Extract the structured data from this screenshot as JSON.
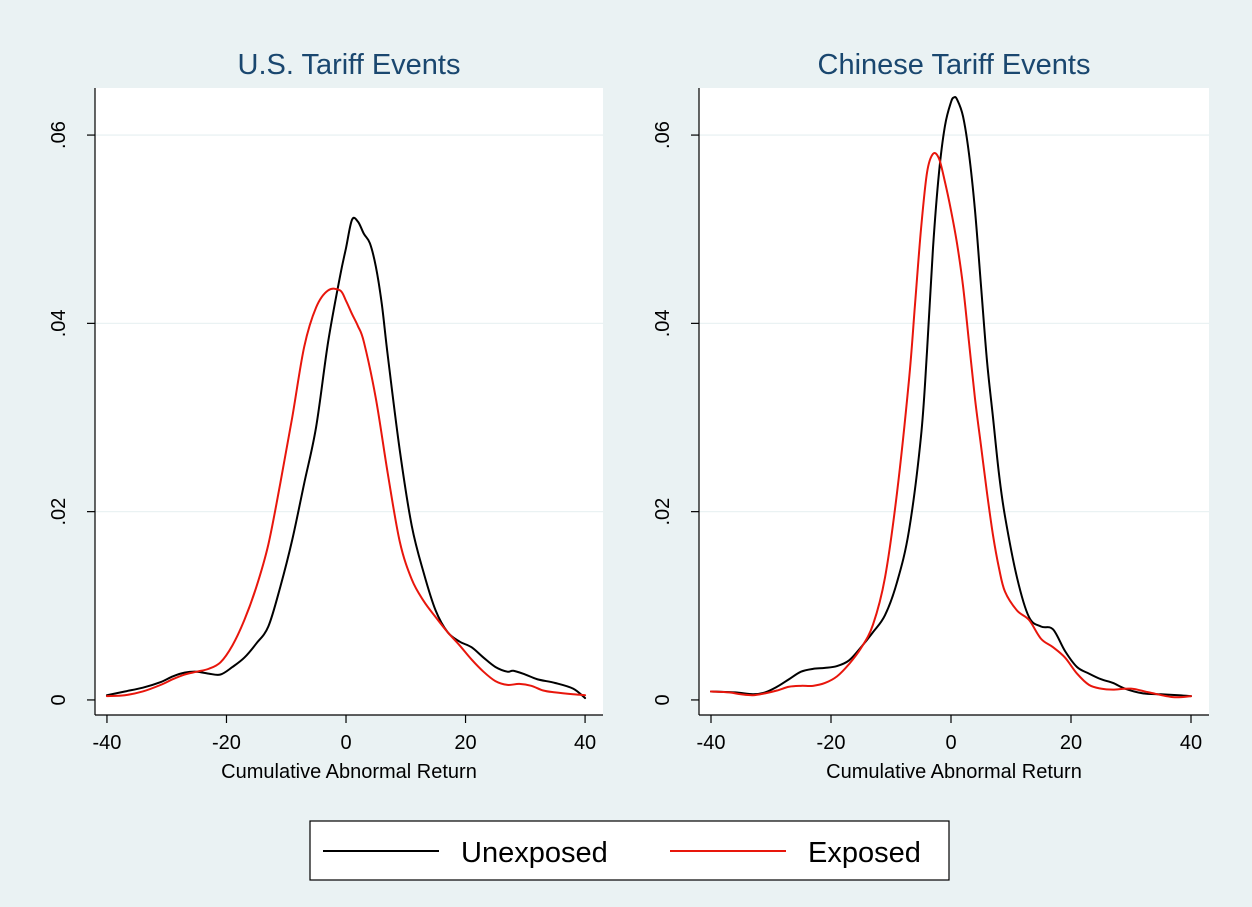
{
  "colors": {
    "background": "#eaf2f3",
    "plot_background": "#ffffff",
    "title": "#1a476f",
    "gridline": "#eaf2f3",
    "unexposed": "#000000",
    "exposed": "#e8160c"
  },
  "legend": {
    "position": "bottom-center",
    "items": [
      {
        "label": "Unexposed",
        "color": "#000000"
      },
      {
        "label": "Exposed",
        "color": "#e8160c"
      }
    ]
  },
  "chart_data": [
    {
      "type": "line",
      "title": "U.S. Tariff Events",
      "xlabel": "Cumulative Abnormal Return",
      "ylabel": "",
      "xlim": [
        -42,
        43
      ],
      "ylim": [
        -0.0016,
        0.065
      ],
      "xticks": [
        -40,
        -20,
        0,
        20,
        40
      ],
      "xtick_labels": [
        "-40",
        "-20",
        "0",
        "20",
        "40"
      ],
      "yticks": [
        0,
        0.02,
        0.04,
        0.06
      ],
      "ytick_labels": [
        "0",
        ".02",
        ".04",
        ".06"
      ],
      "grid": true,
      "series": [
        {
          "name": "Unexposed",
          "color": "#000000",
          "x": [
            -40,
            -37,
            -34,
            -31,
            -29,
            -27,
            -25,
            -23,
            -21,
            -19,
            -17,
            -15,
            -13,
            -11,
            -9,
            -7,
            -5,
            -3,
            -1,
            0,
            1,
            2,
            3,
            4,
            5,
            6,
            7,
            9,
            11,
            13,
            15,
            17,
            19,
            21,
            23,
            25,
            27,
            28,
            30,
            32,
            35,
            38,
            40
          ],
          "y": [
            0.0005,
            0.0009,
            0.0013,
            0.0019,
            0.0025,
            0.0029,
            0.003,
            0.0028,
            0.0027,
            0.0035,
            0.0045,
            0.006,
            0.0078,
            0.012,
            0.017,
            0.023,
            0.029,
            0.038,
            0.045,
            0.048,
            0.051,
            0.0508,
            0.0495,
            0.0485,
            0.046,
            0.042,
            0.0365,
            0.0265,
            0.0185,
            0.0135,
            0.0095,
            0.0072,
            0.0062,
            0.0056,
            0.0045,
            0.0035,
            0.003,
            0.0031,
            0.0027,
            0.0022,
            0.0018,
            0.0012,
            0.0002
          ]
        },
        {
          "name": "Exposed",
          "color": "#e8160c",
          "x": [
            -40,
            -37,
            -34,
            -31,
            -29,
            -27,
            -25,
            -23,
            -21,
            -19,
            -17,
            -15,
            -13,
            -11,
            -9,
            -7,
            -5,
            -3,
            -1,
            0,
            1,
            2,
            3,
            5,
            7,
            9,
            11,
            13,
            15,
            17,
            19,
            21,
            23,
            25,
            27,
            29,
            31,
            33,
            35,
            38,
            40
          ],
          "y": [
            0.0004,
            0.0005,
            0.0009,
            0.0016,
            0.0022,
            0.0027,
            0.003,
            0.0033,
            0.004,
            0.0058,
            0.0085,
            0.012,
            0.0165,
            0.023,
            0.03,
            0.0375,
            0.0417,
            0.0435,
            0.0435,
            0.0424,
            0.041,
            0.0397,
            0.038,
            0.032,
            0.024,
            0.0168,
            0.0128,
            0.0105,
            0.0088,
            0.0072,
            0.0058,
            0.0043,
            0.003,
            0.002,
            0.0016,
            0.0017,
            0.0015,
            0.001,
            0.0008,
            0.0006,
            0.0005
          ]
        }
      ]
    },
    {
      "type": "line",
      "title": "Chinese Tariff Events",
      "xlabel": "Cumulative Abnormal Return",
      "ylabel": "",
      "xlim": [
        -42,
        43
      ],
      "ylim": [
        -0.0016,
        0.065
      ],
      "xticks": [
        -40,
        -20,
        0,
        20,
        40
      ],
      "xtick_labels": [
        "-40",
        "-20",
        "0",
        "20",
        "40"
      ],
      "yticks": [
        0,
        0.02,
        0.04,
        0.06
      ],
      "ytick_labels": [
        "0",
        ".02",
        ".04",
        ".06"
      ],
      "grid": true,
      "series": [
        {
          "name": "Unexposed",
          "color": "#000000",
          "x": [
            -40,
            -36,
            -33,
            -31,
            -29,
            -27,
            -25,
            -23,
            -21,
            -19,
            -17,
            -15,
            -13,
            -11,
            -9,
            -7,
            -5,
            -4,
            -3,
            -2,
            -1,
            0,
            0.5,
            1,
            2,
            3,
            4,
            5,
            6,
            7,
            8,
            9,
            11,
            13,
            15,
            17,
            19,
            21,
            23,
            25,
            27,
            29,
            32,
            35,
            38,
            40
          ],
          "y": [
            0.0009,
            0.0008,
            0.0006,
            0.0008,
            0.0014,
            0.0022,
            0.003,
            0.0033,
            0.0034,
            0.0036,
            0.0042,
            0.0056,
            0.0072,
            0.009,
            0.0125,
            0.018,
            0.028,
            0.037,
            0.048,
            0.056,
            0.061,
            0.0635,
            0.064,
            0.0638,
            0.062,
            0.058,
            0.052,
            0.044,
            0.036,
            0.03,
            0.024,
            0.0195,
            0.013,
            0.0088,
            0.0078,
            0.0075,
            0.0052,
            0.0035,
            0.0028,
            0.0022,
            0.0018,
            0.0012,
            0.0007,
            0.0006,
            0.0005,
            0.0004
          ]
        },
        {
          "name": "Exposed",
          "color": "#e8160c",
          "x": [
            -40,
            -37,
            -35,
            -33,
            -31,
            -29,
            -27,
            -25,
            -23,
            -21,
            -19,
            -17,
            -15,
            -13,
            -11,
            -9,
            -7,
            -6,
            -5,
            -4,
            -3,
            -2,
            -1,
            0,
            1,
            2,
            3,
            4,
            5,
            6,
            7,
            8,
            9,
            11,
            13,
            15,
            17,
            19,
            21,
            23,
            25,
            27,
            30,
            33,
            37,
            40
          ],
          "y": [
            0.0009,
            0.0008,
            0.0006,
            0.0005,
            0.0007,
            0.001,
            0.0014,
            0.0015,
            0.0015,
            0.0018,
            0.0025,
            0.0038,
            0.0055,
            0.008,
            0.013,
            0.022,
            0.034,
            0.042,
            0.05,
            0.056,
            0.058,
            0.0575,
            0.055,
            0.052,
            0.0485,
            0.044,
            0.038,
            0.032,
            0.027,
            0.022,
            0.0175,
            0.014,
            0.0115,
            0.0095,
            0.0085,
            0.0065,
            0.0056,
            0.0045,
            0.0028,
            0.0016,
            0.0012,
            0.0011,
            0.0012,
            0.0008,
            0.0003,
            0.0004
          ]
        }
      ]
    }
  ]
}
